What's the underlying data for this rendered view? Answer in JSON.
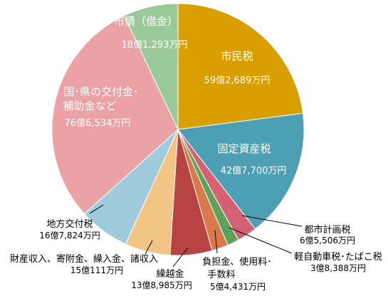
{
  "chart_data": {
    "type": "pie",
    "unit": "万円",
    "slices": [
      {
        "name": "市民税",
        "amount_text": "59億2,689万円",
        "value": 592689,
        "color": "#D99F00"
      },
      {
        "name": "固定資産税",
        "amount_text": "42億7,700万円",
        "value": 427700,
        "color": "#4D9FB4"
      },
      {
        "name": "都市計画税",
        "amount_text": "6億5,506万円",
        "value": 65506,
        "color": "#D46173"
      },
      {
        "name": "軽自動車税・たばこ税",
        "amount_text": "3億8,388万円",
        "value": 38388,
        "color": "#5FA05B"
      },
      {
        "name": "負担金、使用料・手数料",
        "amount_text": "5億4,431万円",
        "value": 54431,
        "color": "#D9784A"
      },
      {
        "name": "繰越金",
        "amount_text": "13億8,985万円",
        "value": 138985,
        "color": "#B84343"
      },
      {
        "name": "財産収入、寄附金、繰入金、諸収入",
        "amount_text": "15億111万円",
        "value": 150111,
        "color": "#F2C585"
      },
      {
        "name": "地方交付税",
        "amount_text": "16億7,824万円",
        "value": 167824,
        "color": "#9FCBDD"
      },
      {
        "name": "国・県の交付金・補助金など",
        "amount_text": "76億6,534万円",
        "value": 766534,
        "color": "#EBA2A6"
      },
      {
        "name": "市債（借金）",
        "amount_text": "18億1,293万円",
        "value": 181293,
        "color": "#9AC999"
      }
    ]
  },
  "labels": {
    "shimin_name": "市民税",
    "shimin_amt": "59億2,689万円",
    "kotei_name": "固定資産税",
    "kotei_amt": "42億7,700万円",
    "toshi_name": "都市計画税",
    "toshi_amt": "6億5,506万円",
    "kei_name": "軽自動車税･たばこ税",
    "kei_amt": "3億8,388万円",
    "futan_line1": "負担金、使用料･",
    "futan_line2": "手数料",
    "futan_amt": "5億4,431万円",
    "kurikoshi_name": "繰越金",
    "kurikoshi_amt": "13億8,985万円",
    "zaisan_name": "財産収入、寄附金、繰入金、諸収入",
    "zaisan_amt": "15億111万円",
    "chiho_name": "地方交付税",
    "chiho_amt": "16億7,824万円",
    "kuni_line1": "国･県の交付金･",
    "kuni_line2": "補助金など",
    "kuni_amt": "76億6,534万円",
    "shisai_name": "市債（借金）",
    "shisai_amt": "18億1,293万円"
  }
}
